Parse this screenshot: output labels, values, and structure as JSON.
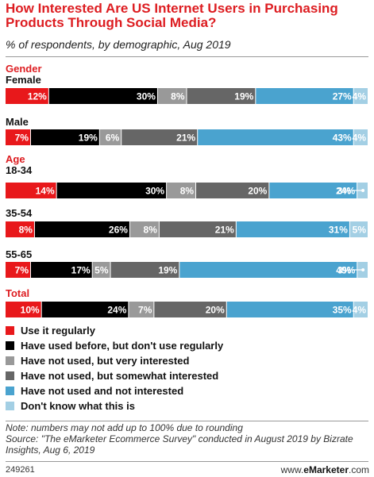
{
  "header": {
    "title": "How Interested Are US Internet Users in Purchasing Products Through Social Media?",
    "subtitle": "% of respondents, by demographic, Aug 2019"
  },
  "chart_data": {
    "type": "bar",
    "orientation": "horizontal",
    "stacked": true,
    "categories": [
      "Female",
      "Male",
      "18-34",
      "35-54",
      "55-65",
      "Total"
    ],
    "groups": [
      {
        "label": "Gender",
        "rows": [
          "Female",
          "Male"
        ]
      },
      {
        "label": "Age",
        "rows": [
          "18-34",
          "35-54",
          "55-65"
        ]
      },
      {
        "label": "Total",
        "rows": [
          "Total"
        ]
      }
    ],
    "series": [
      {
        "name": "Use it regularly",
        "color": "#e8181b",
        "values": [
          12,
          7,
          14,
          8,
          7,
          10
        ]
      },
      {
        "name": "Have used before, but don't use regularly",
        "color": "#000000",
        "values": [
          30,
          19,
          30,
          26,
          17,
          24
        ]
      },
      {
        "name": "Have not used, but very interested",
        "color": "#999999",
        "values": [
          8,
          6,
          8,
          8,
          5,
          7
        ]
      },
      {
        "name": "Have not used, but somewhat interested",
        "color": "#666666",
        "values": [
          19,
          21,
          20,
          21,
          19,
          20
        ]
      },
      {
        "name": "Have not used and not interested",
        "color": "#4aa3cf",
        "values": [
          27,
          43,
          24,
          31,
          49,
          35
        ]
      },
      {
        "name": "Don't know what this is",
        "color": "#a3cfe4",
        "values": [
          4,
          4,
          3,
          5,
          3,
          4
        ]
      }
    ],
    "legend_position": "bottom-left",
    "grid": false
  },
  "notes": {
    "note": "Note: numbers may not add up to 100% due to rounding",
    "source": "Source: \"The eMarketer Ecommerce Survey\" conducted in August 2019 by Bizrate Insights, Aug 6, 2019"
  },
  "footer": {
    "id": "249261",
    "brand_prefix": "www.",
    "brand_name": "eMarketer",
    "brand_suffix": ".com"
  }
}
